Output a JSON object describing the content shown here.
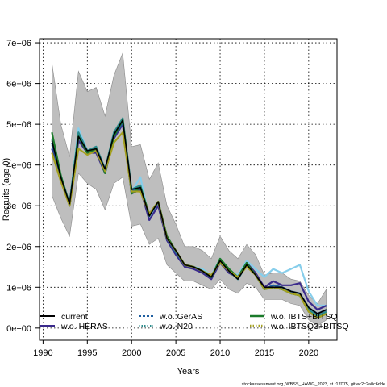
{
  "chart_data": {
    "type": "line",
    "title": "",
    "xlabel": "Years",
    "ylabel": "Recruits (age 0)",
    "xlim": [
      1989.6,
      2023.2
    ],
    "ylim": [
      -300000,
      7100000
    ],
    "xticks": [
      1990,
      1995,
      2000,
      2005,
      2010,
      2015,
      2020
    ],
    "xtick_labels": [
      "1990",
      "1995",
      "2000",
      "2005",
      "2010",
      "2015",
      "2020"
    ],
    "yticks": [
      0,
      1000000,
      2000000,
      3000000,
      4000000,
      5000000,
      6000000,
      7000000
    ],
    "ytick_labels": [
      "0e+00",
      "1e+06",
      "2e+06",
      "3e+06",
      "4e+06",
      "5e+06",
      "6e+06",
      "7e+06"
    ],
    "grid": true,
    "legend_position": "bottom",
    "years": [
      1991,
      1992,
      1993,
      1994,
      1995,
      1996,
      1997,
      1998,
      1999,
      2000,
      2001,
      2002,
      2003,
      2004,
      2005,
      2006,
      2007,
      2008,
      2009,
      2010,
      2011,
      2012,
      2013,
      2014,
      2015,
      2016,
      2017,
      2018,
      2019,
      2020,
      2021,
      2022
    ],
    "band": {
      "upper": [
        6500000,
        5000000,
        4200000,
        6300000,
        5800000,
        5900000,
        5200000,
        6200000,
        6750000,
        4450000,
        4500000,
        3650000,
        4050000,
        3000000,
        2550000,
        2000000,
        2000000,
        1900000,
        1700000,
        2250000,
        1900000,
        1700000,
        2050000,
        1800000,
        1300000,
        1350000,
        1350000,
        1200000,
        1150000,
        800000,
        600000,
        950000
      ],
      "lower": [
        3250000,
        2700000,
        2250000,
        3800000,
        3550000,
        3400000,
        2900000,
        3550000,
        3700000,
        2500000,
        2550000,
        2050000,
        2200000,
        1550000,
        1350000,
        1150000,
        1150000,
        1050000,
        950000,
        1200000,
        950000,
        850000,
        1100000,
        1000000,
        700000,
        700000,
        700000,
        600000,
        550000,
        200000,
        50000,
        200000
      ]
    },
    "series": [
      {
        "name": "current",
        "values": [
          4600000,
          3700000,
          3050000,
          4700000,
          4350000,
          4400000,
          3900000,
          4750000,
          5100000,
          3400000,
          3450000,
          2750000,
          3100000,
          2200000,
          1900000,
          1550000,
          1500000,
          1400000,
          1250000,
          1650000,
          1400000,
          1200000,
          1550000,
          1300000,
          1000000,
          1000000,
          1000000,
          900000,
          850000,
          500000,
          350000,
          450000
        ]
      },
      {
        "name": "w.o. HERAS",
        "values": [
          4400000,
          3650000,
          3000000,
          4600000,
          4300000,
          4300000,
          3800000,
          4650000,
          5000000,
          3300000,
          3400000,
          2650000,
          3000000,
          2150000,
          1800000,
          1500000,
          1450000,
          1350000,
          1200000,
          1600000,
          1350000,
          1250000,
          1600000,
          1350000,
          1000000,
          1150000,
          1050000,
          1050000,
          1100000,
          650000,
          450000,
          550000
        ]
      },
      {
        "name": "w.o. GerAS",
        "values": [
          4550000,
          3650000,
          3050000,
          4750000,
          4350000,
          4350000,
          3850000,
          4700000,
          5050000,
          3350000,
          3450000,
          2750000,
          3100000,
          2200000,
          1850000,
          1550000,
          1500000,
          1400000,
          1250000,
          1650000,
          1400000,
          1200000,
          1550000,
          1300000,
          950000,
          1050000,
          1000000,
          900000,
          850000,
          500000,
          350000,
          450000
        ]
      },
      {
        "name": "w.o. N20",
        "values": [
          4650000,
          3750000,
          3050000,
          4800000,
          4350000,
          4450000,
          3900000,
          4800000,
          5150000,
          3400000,
          3500000,
          2750000,
          3100000,
          2200000,
          1900000,
          1550000,
          1500000,
          1400000,
          1250000,
          1650000,
          1400000,
          1200000,
          1550000,
          1300000,
          950000,
          1000000,
          950000,
          850000,
          800000,
          450000,
          300000,
          400000
        ]
      },
      {
        "name": "w.o. IBTS+BITSQ",
        "values": [
          4800000,
          3750000,
          3000000,
          4700000,
          4300000,
          4400000,
          3800000,
          4700000,
          5100000,
          3300000,
          3450000,
          2800000,
          3100000,
          2250000,
          1900000,
          1550000,
          1500000,
          1400000,
          1250000,
          1700000,
          1450000,
          1250000,
          1600000,
          1300000,
          950000,
          1000000,
          950000,
          850000,
          800000,
          400000,
          250000,
          350000
        ]
      },
      {
        "name": "w.o. IBTSQ3+BITSQ",
        "values": [
          4300000,
          3600000,
          3000000,
          4400000,
          4250000,
          4350000,
          3850000,
          4550000,
          4800000,
          3350000,
          3350000,
          2800000,
          3100000,
          2200000,
          1900000,
          1550000,
          1500000,
          1400000,
          1300000,
          1600000,
          1400000,
          1250000,
          1500000,
          1300000,
          950000,
          1000000,
          950000,
          850000,
          800000,
          400000,
          250000,
          350000
        ]
      },
      {
        "name": "",
        "values": [
          4500000,
          3700000,
          3050000,
          4900000,
          4350000,
          4450000,
          3850000,
          4800000,
          5050000,
          3350000,
          3700000,
          2650000,
          3050000,
          2150000,
          1850000,
          1550000,
          1500000,
          1450000,
          1300000,
          1700000,
          1400000,
          1300000,
          1650000,
          1450000,
          1250000,
          1450000,
          1350000,
          1450000,
          1550000,
          900000,
          550000,
          550000
        ]
      }
    ],
    "colors": {
      "band": "#bebebe",
      "current": "#000000",
      "w.o. HERAS": "#3a2a8c",
      "w.o. GerAS": "#1f5fa0",
      "w.o. N20": "#2a8a8a",
      "w.o. IBTS+BITSQ": "#1a7a2a",
      "w.o. IBTSQ3+BITSQ": "#a4a020",
      "extra": "#87ceeb"
    }
  },
  "legend": {
    "col1": [
      "current",
      "w.o. HERAS"
    ],
    "col2": [
      "w.o. GerAS",
      "w.o. N20"
    ],
    "col3": [
      "w.o. IBTS+BITSQ",
      "w.o. IBTSQ3+BITSQ"
    ]
  },
  "credit": "stockassessment.org, WBSS_HAWG_2023, st r17075, git:ec2c2a0c6dde"
}
